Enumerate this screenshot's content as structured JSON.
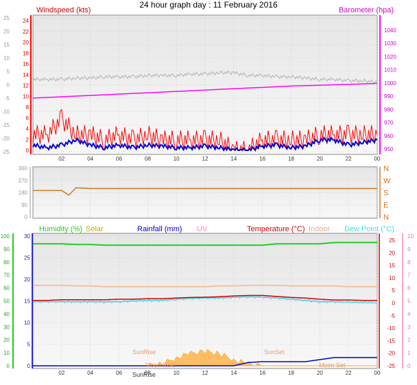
{
  "title": "24 hour graph day : 11 February 2016",
  "x_ticks": [
    "02",
    "04",
    "06",
    "08",
    "10",
    "12",
    "14",
    "16",
    "18",
    "20",
    "22",
    "00"
  ],
  "colors": {
    "wind_gust": "#ff0000",
    "wind_avg": "#0000e0",
    "barometer": "#ff00ff",
    "gray_line": "#b8b8b8",
    "direction": "#d07820",
    "humidity": "#22cc22",
    "solar": "#ffaa33",
    "rainfall": "#0000cc",
    "uv": "#ff88aa",
    "temperature": "#cc0000",
    "indoor": "#f4c0a0",
    "dewpoint": "#44dddd",
    "dewpoint_scatter": "#a0b8ff"
  },
  "chart_data": [
    {
      "type": "line",
      "panel": "wind-barometer",
      "left_axis": {
        "label": "Windspeed (kts)",
        "range": [
          -25,
          25
        ],
        "ticks": [
          "25",
          "20",
          "15",
          "10",
          "5",
          "0",
          "-5",
          "-10",
          "-15",
          "-20",
          "-25"
        ]
      },
      "left_axis_inner": {
        "ticks": [
          "24",
          "22",
          "20",
          "18",
          "16",
          "14",
          "12",
          "10",
          "8",
          "6",
          "4",
          "2",
          "0"
        ]
      },
      "right_axis": {
        "label": "Barometer (hpa)",
        "range": [
          950,
          1050
        ],
        "ticks": [
          "1040",
          "1030",
          "1020",
          "1010",
          "1000",
          "990",
          "980",
          "970",
          "960",
          "950"
        ]
      },
      "x": [
        0,
        1,
        2,
        3,
        4,
        5,
        6,
        7,
        8,
        9,
        10,
        11,
        12,
        13,
        14,
        15,
        16,
        17,
        18,
        19,
        20,
        21,
        22,
        23,
        24
      ],
      "series": [
        {
          "key": "gust",
          "values": [
            3,
            3,
            6,
            3,
            3,
            2,
            3,
            2,
            3,
            2,
            2,
            2,
            2,
            2,
            0,
            0,
            2,
            2,
            2,
            2,
            3,
            3,
            3,
            3,
            3
          ]
        },
        {
          "key": "avg",
          "values": [
            1,
            0.5,
            1,
            2,
            1,
            0.5,
            1,
            0.5,
            1,
            0.8,
            0.5,
            0.5,
            0.8,
            0.5,
            0,
            0,
            0.8,
            1,
            0.5,
            0.8,
            2,
            2,
            1,
            1.5,
            2
          ]
        },
        {
          "key": "barometer",
          "values": [
            997,
            997.5,
            998,
            998.5,
            999,
            999.5,
            1000,
            1000.5,
            1001,
            1001.5,
            1002,
            1002.5,
            1003,
            1003.5,
            1004,
            1004.5,
            1005,
            1005.5,
            1006,
            1006.3,
            1006.6,
            1007,
            1007.3,
            1007.6,
            1008
          ]
        },
        {
          "key": "gray",
          "values": [
            2,
            2,
            2,
            2.5,
            2.5,
            3,
            3,
            3,
            3.5,
            3.5,
            3.5,
            4,
            4,
            4.5,
            4.5,
            3.5,
            3.5,
            3,
            3,
            2.5,
            2,
            2,
            1.5,
            1.5,
            1
          ]
        }
      ]
    },
    {
      "type": "line",
      "panel": "direction",
      "left_axis": {
        "range": [
          0,
          360
        ],
        "ticks": [
          "360",
          "270",
          "180",
          "90",
          "0"
        ]
      },
      "right_axis": {
        "ticks": [
          "N",
          "W",
          "S",
          "E",
          "N"
        ]
      },
      "x": [
        0,
        2,
        2.5,
        3,
        4,
        6,
        8,
        10,
        12,
        14,
        16,
        18,
        20,
        22,
        24
      ],
      "series": [
        {
          "key": "direction",
          "values": [
            195,
            195,
            160,
            215,
            210,
            210,
            210,
            210,
            210,
            210,
            210,
            210,
            210,
            210,
            210
          ]
        }
      ]
    },
    {
      "type": "line",
      "panel": "multi",
      "legend": [
        "Humidity (%)",
        "Solar",
        "Rainfall (mm)",
        "UV",
        "Temperature (°C)",
        "Indoor",
        "Dew Point (°C)"
      ],
      "axis_humidity": {
        "range": [
          0,
          100
        ],
        "ticks": [
          "100",
          "90",
          "80",
          "70",
          "60",
          "50",
          "40",
          "30",
          "20",
          "10",
          "0"
        ]
      },
      "axis_rain": {
        "range": [
          0,
          30
        ],
        "ticks": [
          "30",
          "25",
          "20",
          "15",
          "10",
          "5",
          "0"
        ]
      },
      "axis_temperature": {
        "range": [
          -25,
          25
        ],
        "ticks": [
          "25",
          "20",
          "15",
          "10",
          "5",
          "0",
          "-5",
          "-10",
          "-15",
          "-20",
          "-25"
        ]
      },
      "axis_uv": {
        "ticks": [
          "10",
          "9",
          "8",
          "7",
          "6",
          "5",
          "4",
          "3",
          "2",
          "1",
          "0"
        ]
      },
      "annotations": [
        "SunRise",
        "SunSet",
        "SunRise",
        "Moon Rise",
        "Moon Set"
      ],
      "x": [
        0,
        1,
        2,
        3,
        4,
        5,
        6,
        7,
        8,
        9,
        10,
        11,
        12,
        13,
        14,
        15,
        16,
        17,
        18,
        19,
        20,
        21,
        22,
        23,
        24
      ],
      "series": [
        {
          "key": "humidity",
          "values": [
            94,
            94,
            94,
            93.5,
            93.5,
            93,
            93,
            93,
            93,
            93,
            93,
            93,
            93,
            93,
            93,
            93,
            93,
            94,
            94,
            94,
            94,
            95,
            95,
            95,
            95
          ]
        },
        {
          "key": "temperature",
          "values": [
            1,
            1,
            1.3,
            1.3,
            1.3,
            1.3,
            1.5,
            1.5,
            1.7,
            1.7,
            2,
            2.2,
            2.3,
            2.5,
            2.8,
            3,
            3,
            2.6,
            2.2,
            2,
            1.5,
            1.2,
            1.2,
            1,
            1
          ]
        },
        {
          "key": "indoor",
          "values": [
            7,
            7,
            7,
            6.8,
            6.8,
            6.5,
            6.5,
            6.5,
            6.5,
            6.5,
            6.5,
            6.5,
            6.5,
            6.8,
            6.8,
            7,
            7,
            7,
            6.8,
            6.8,
            6.8,
            6.8,
            6.5,
            6.5,
            6.5
          ]
        },
        {
          "key": "dewpoint",
          "values": [
            0.5,
            0.5,
            0.5,
            0.5,
            0.5,
            0.5,
            0.5,
            0.8,
            1,
            1,
            1.5,
            1.8,
            2,
            2,
            2.2,
            2.5,
            2.3,
            2,
            1.5,
            1,
            0.5,
            0.5,
            0.3,
            0.2,
            0
          ]
        },
        {
          "key": "rainfall",
          "values": [
            0,
            0,
            0,
            0,
            0,
            0,
            0,
            0,
            0,
            0,
            0,
            0,
            0,
            0,
            0,
            0.8,
            1,
            1,
            1,
            1,
            1.5,
            2,
            2,
            2,
            2
          ]
        },
        {
          "key": "solar",
          "values": [
            0,
            0,
            0,
            0,
            0,
            0,
            0,
            0,
            0,
            0.5,
            2,
            3,
            3.5,
            3,
            1.5,
            0.5,
            0,
            0,
            0,
            0,
            0,
            0,
            0,
            0,
            0
          ]
        }
      ]
    }
  ]
}
